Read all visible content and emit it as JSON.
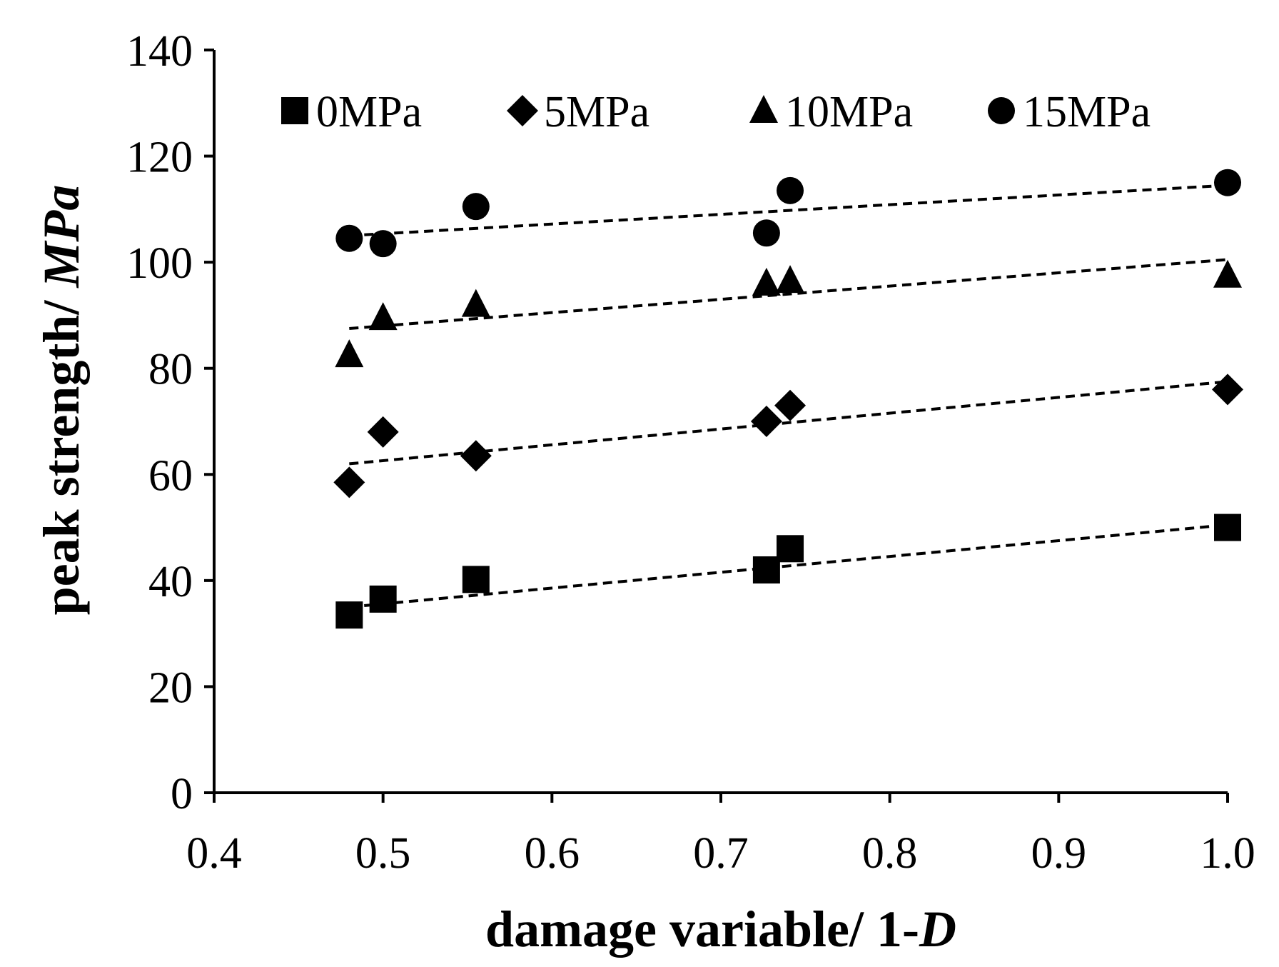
{
  "chart_data": {
    "type": "scatter",
    "title": "",
    "xlabel": "damage variable/ 1-",
    "xlabel_italic": "D",
    "ylabel": "peak strength/ ",
    "ylabel_italic": "MPa",
    "xlim": [
      0.4,
      1.0
    ],
    "ylim": [
      0,
      140
    ],
    "xticks": [
      0.4,
      0.5,
      0.6,
      0.7,
      0.8,
      0.9,
      1.0
    ],
    "xtick_labels": [
      "0.4",
      "0.5",
      "0.6",
      "0.7",
      "0.8",
      "0.9",
      "1.0"
    ],
    "yticks": [
      0,
      20,
      40,
      60,
      80,
      100,
      120,
      140
    ],
    "ytick_labels": [
      "0",
      "20",
      "40",
      "60",
      "80",
      "100",
      "120",
      "140"
    ],
    "grid": false,
    "legend_position": "top",
    "series": [
      {
        "name": "0MPa",
        "marker": "square",
        "x": [
          0.48,
          0.5,
          0.555,
          0.727,
          0.741,
          1.0
        ],
        "y": [
          33.5,
          36.5,
          40.2,
          42.0,
          46.0,
          50.0
        ],
        "trend": {
          "x": [
            0.48,
            1.0
          ],
          "y": [
            35.0,
            50.5
          ]
        }
      },
      {
        "name": "5MPa",
        "marker": "diamond",
        "x": [
          0.48,
          0.5,
          0.555,
          0.727,
          0.741,
          1.0
        ],
        "y": [
          58.5,
          68.0,
          63.5,
          70.0,
          73.0,
          76.0
        ],
        "trend": {
          "x": [
            0.48,
            1.0
          ],
          "y": [
            62.0,
            77.5
          ]
        }
      },
      {
        "name": "10MPa",
        "marker": "triangle",
        "x": [
          0.48,
          0.5,
          0.555,
          0.727,
          0.741,
          1.0
        ],
        "y": [
          82.5,
          89.5,
          92.0,
          96.0,
          96.5,
          97.5
        ],
        "trend": {
          "x": [
            0.48,
            1.0
          ],
          "y": [
            87.5,
            100.5
          ]
        }
      },
      {
        "name": "15MPa",
        "marker": "circle",
        "x": [
          0.48,
          0.5,
          0.555,
          0.727,
          0.741,
          1.0
        ],
        "y": [
          104.5,
          103.5,
          110.5,
          105.5,
          113.5,
          115.0
        ],
        "trend": {
          "x": [
            0.48,
            1.0
          ],
          "y": [
            105.0,
            114.5
          ]
        }
      }
    ]
  }
}
